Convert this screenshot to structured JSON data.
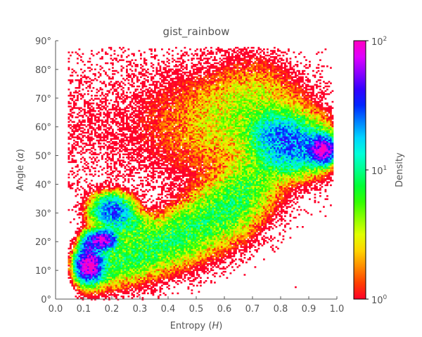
{
  "chart_data": {
    "type": "heatmap",
    "title": "gist_rainbow",
    "xlabel": "Entropy",
    "xlabel_var": "H",
    "ylabel": "Angle",
    "ylabel_var": "α",
    "xlim": [
      0.0,
      1.0
    ],
    "ylim": [
      0,
      90
    ],
    "x_ticks": [
      "0.0",
      "0.1",
      "0.2",
      "0.3",
      "0.4",
      "0.5",
      "0.6",
      "0.7",
      "0.8",
      "0.9",
      "1.0"
    ],
    "y_ticks": [
      "0°",
      "10°",
      "20°",
      "30°",
      "40°",
      "50°",
      "60°",
      "70°",
      "80°",
      "90°"
    ],
    "colorbar": {
      "label": "Density",
      "scale": "log",
      "range": [
        1,
        100
      ],
      "ticks": [
        {
          "base": "10",
          "exp": "0",
          "value": 1
        },
        {
          "base": "10",
          "exp": "1",
          "value": 10
        },
        {
          "base": "10",
          "exp": "2",
          "value": 100
        }
      ],
      "colormap": [
        "#ff0029",
        "#ff4000",
        "#ff8c00",
        "#ffd400",
        "#e0ff00",
        "#8cff00",
        "#33ff00",
        "#00ff33",
        "#00ff8c",
        "#00ffd9",
        "#00d4ff",
        "#0080ff",
        "#0026ff",
        "#3300ff",
        "#8c00ff",
        "#e000ff",
        "#ff00bf"
      ]
    },
    "density_regions": [
      {
        "name": "sparse scatter",
        "x_range": [
          0.05,
          0.65
        ],
        "y_range": [
          45,
          88
        ],
        "density": 1
      },
      {
        "name": "upper plume",
        "x_range": [
          0.35,
          0.99
        ],
        "y_range": [
          40,
          75
        ],
        "density": 3
      },
      {
        "name": "high-entropy core",
        "x_range": [
          0.72,
          0.98
        ],
        "y_range": [
          45,
          60
        ],
        "density": 40
      },
      {
        "name": "peak near H=0.95",
        "x_range": [
          0.9,
          0.98
        ],
        "y_range": [
          50,
          55
        ],
        "density": 100
      },
      {
        "name": "lower branch",
        "x_range": [
          0.08,
          0.6
        ],
        "y_range": [
          8,
          32
        ],
        "density": 10
      },
      {
        "name": "low-entropy peak",
        "x_range": [
          0.09,
          0.17
        ],
        "y_range": [
          8,
          22
        ],
        "density": 100
      }
    ]
  }
}
